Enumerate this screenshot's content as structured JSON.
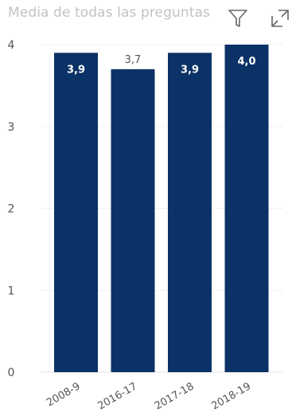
{
  "header": {
    "title": "Media de todas las preguntas",
    "icons": [
      "filter-icon",
      "focus-mode-icon"
    ]
  },
  "colors": {
    "bar": "#0B3266",
    "grid": "#e6e6e6",
    "axis_text": "#555555",
    "title_text": "#c2c2c2",
    "icon": "#666666",
    "label_inside": "#ffffff",
    "label_outside": "#555555"
  },
  "chart_data": {
    "type": "bar",
    "title": "Media de todas las preguntas",
    "categories": [
      "2008-9",
      "2016-17",
      "2017-18",
      "2018-19"
    ],
    "values": [
      3.9,
      3.7,
      3.9,
      4.0
    ],
    "data_labels": [
      "3,9",
      "3,7",
      "3,9",
      "4,0"
    ],
    "label_position": [
      "inside",
      "outside",
      "inside",
      "inside"
    ],
    "yticks": [
      0,
      1,
      2,
      3,
      4
    ],
    "ylim": [
      0,
      4
    ],
    "xlabel": "",
    "ylabel": "",
    "grid": true,
    "legend": false
  }
}
